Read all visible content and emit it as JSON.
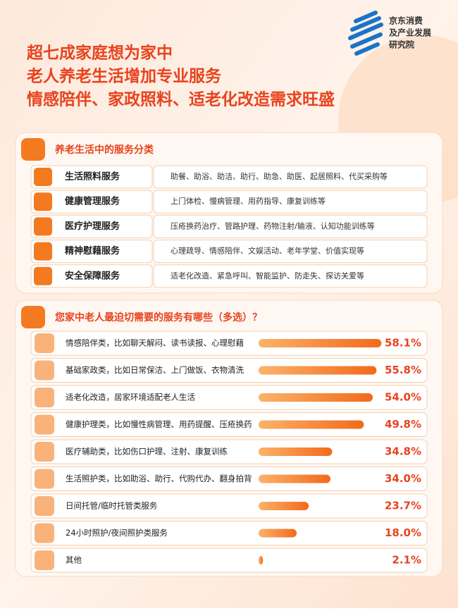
{
  "logo": {
    "lines": [
      "京东消费",
      "及产业发展",
      "研究院"
    ]
  },
  "header": {
    "title_lines": [
      "超七成家庭想为家中",
      "老人养老生活增加专业服务",
      "情感陪伴、家政照料、适老化改造需求旺盛"
    ]
  },
  "table": {
    "title": "养老生活中的服务分类",
    "rows": [
      [
        "生活照料服务",
        "助餐、助浴、助洁、助行、助急、助医、起居照料、代买采购等"
      ],
      [
        "健康管理服务",
        "上门体检、慢病管理、用药指导、康复训练等"
      ],
      [
        "医疗护理服务",
        "压疮换药治疗、管路护理、药物注射/输液、认知功能训练等"
      ],
      [
        "精神慰藉服务",
        "心理疏导、情感陪伴、文娱活动、老年学堂、价值实现等"
      ],
      [
        "安全保障服务",
        "适老化改造、紧急呼叫、智能监护、防走失、探访关爱等"
      ]
    ]
  },
  "chart_data": {
    "type": "bar",
    "orientation": "horizontal",
    "title": "您家中老人最迫切需要的服务有哪些（多选）？",
    "categories": [
      "情感陪伴类，比如聊天解闷、读书读报、心理慰藉",
      "基础家政类，比如日常保洁、上门做饭、衣物清洗",
      "适老化改造，居家环境适配老人生活",
      "健康护理类，比如慢性病管理、用药提醒、压疮换药",
      "医疗辅助类，比如伤口护理、注射、康复训练",
      "生活照护类，比如助浴、助行、代购代办、翻身拍背",
      "日间托管/临时托管类服务",
      "24小时照护/夜间照护类服务",
      "其他"
    ],
    "values": [
      58.1,
      55.8,
      54.0,
      49.8,
      34.8,
      34.0,
      23.7,
      18.0,
      2.1
    ],
    "value_labels": [
      "58.1%",
      "55.8%",
      "54.0%",
      "49.8%",
      "34.8%",
      "34.0%",
      "23.7%",
      "18.0%",
      "2.1%"
    ],
    "color": "#f47a1f"
  }
}
